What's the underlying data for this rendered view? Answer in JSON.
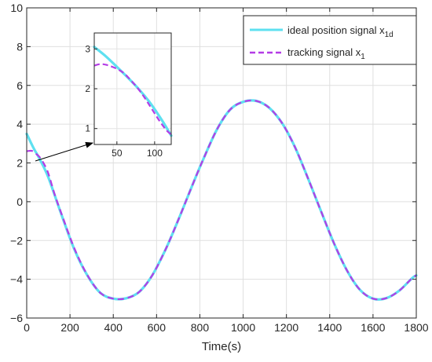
{
  "chart_data": {
    "type": "line",
    "title": "",
    "xlabel": "Time(s)",
    "ylabel": "",
    "xlim": [
      0,
      1800
    ],
    "ylim": [
      -6,
      10
    ],
    "xticks": [
      0,
      200,
      400,
      600,
      800,
      1000,
      1200,
      1400,
      1600,
      1800
    ],
    "yticks": [
      -6,
      -4,
      -2,
      0,
      2,
      4,
      6,
      8,
      10
    ],
    "grid": true,
    "legend_position": "top-right",
    "series": [
      {
        "name": "ideal position signal x",
        "name_sub": "1d",
        "color": "#5ee0f0",
        "style": "solid",
        "x": [
          0,
          30,
          60,
          100,
          160,
          220,
          280,
          340,
          400,
          460,
          520,
          580,
          640,
          700,
          760,
          820,
          880,
          940,
          1000,
          1060,
          1120,
          1180,
          1240,
          1300,
          1360,
          1420,
          1480,
          1540,
          1600,
          1660,
          1720,
          1780,
          1800
        ],
        "y": [
          3.5,
          2.8,
          2.2,
          1.25,
          -0.65,
          -2.45,
          -3.8,
          -4.7,
          -5.0,
          -4.98,
          -4.65,
          -3.8,
          -2.5,
          -0.95,
          0.7,
          2.3,
          3.75,
          4.75,
          5.15,
          5.2,
          4.85,
          4.05,
          2.8,
          1.2,
          -0.5,
          -2.15,
          -3.55,
          -4.55,
          -5.0,
          -4.98,
          -4.6,
          -3.95,
          -3.8
        ]
      },
      {
        "name": "tracking signal x",
        "name_sub": "1",
        "color": "#b43ce6",
        "style": "dashed",
        "x": [
          0,
          10,
          25,
          40,
          60,
          80,
          100,
          130,
          160,
          220,
          280,
          340,
          400,
          460,
          520,
          580,
          640,
          700,
          760,
          820,
          880,
          940,
          1000,
          1060,
          1120,
          1180,
          1240,
          1300,
          1360,
          1420,
          1480,
          1540,
          1600,
          1660,
          1720,
          1780,
          1800
        ],
        "y": [
          2.6,
          2.62,
          2.62,
          2.5,
          2.3,
          1.95,
          1.45,
          0.35,
          -0.6,
          -2.4,
          -3.78,
          -4.7,
          -5.0,
          -4.98,
          -4.65,
          -3.8,
          -2.5,
          -0.95,
          0.7,
          2.3,
          3.75,
          4.75,
          5.15,
          5.2,
          4.85,
          4.05,
          2.8,
          1.2,
          -0.5,
          -2.15,
          -3.55,
          -4.55,
          -5.0,
          -4.98,
          -4.6,
          -3.95,
          -3.8
        ]
      }
    ],
    "inset": {
      "xlim": [
        20,
        122
      ],
      "ylim": [
        0.6,
        3.4
      ],
      "xticks": [
        50,
        100
      ],
      "yticks": [
        1,
        2,
        3
      ],
      "series": [
        {
          "color": "#5ee0f0",
          "style": "solid",
          "x": [
            20,
            35,
            50,
            65,
            80,
            95,
            110,
            122
          ],
          "y": [
            3.05,
            2.82,
            2.55,
            2.27,
            1.97,
            1.62,
            1.2,
            0.82
          ]
        },
        {
          "color": "#b43ce6",
          "style": "dashed",
          "x": [
            20,
            28,
            36,
            44,
            52,
            60,
            68,
            76,
            84,
            92,
            100,
            108,
            116,
            122
          ],
          "y": [
            2.58,
            2.62,
            2.6,
            2.55,
            2.48,
            2.38,
            2.22,
            2.05,
            1.85,
            1.62,
            1.38,
            1.15,
            0.95,
            0.85
          ]
        }
      ]
    }
  }
}
